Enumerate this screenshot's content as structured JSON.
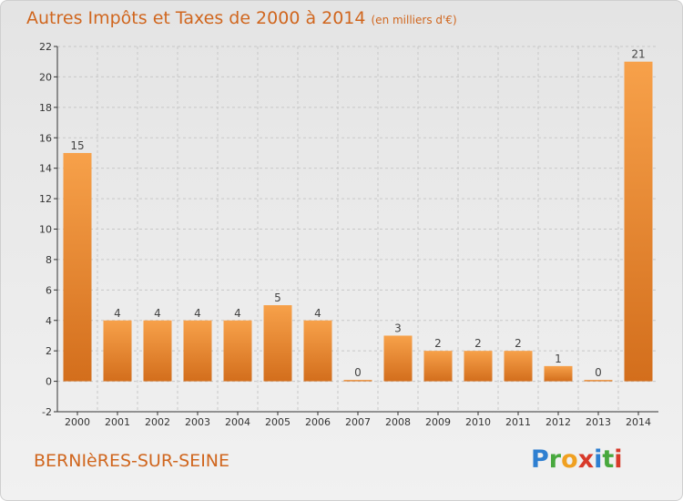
{
  "title": {
    "main": "Autres Impôts et Taxes de 2000 à 2014",
    "unit": "(en milliers d'€)"
  },
  "commune": "BERNIèRES-SUR-SEINE",
  "logo": {
    "text": "Proxiti",
    "letters": [
      "P",
      "r",
      "o",
      "x",
      "i",
      "t",
      "i"
    ],
    "colors": [
      "#2e7fd1",
      "#48a83e",
      "#f0a020",
      "#d83a2a",
      "#2e7fd1",
      "#48a83e",
      "#d83a2a"
    ]
  },
  "colors": {
    "bar_light": "#f7a14a",
    "bar_dark": "#d36e1c",
    "title": "#d0661e",
    "grid": "#c8c8c8",
    "axis": "#333333"
  },
  "chart_data": {
    "type": "bar",
    "title": "Autres Impôts et Taxes de 2000 à 2014",
    "subtitle": "(en milliers d'€)",
    "xlabel": "",
    "ylabel": "",
    "categories": [
      "2000",
      "2001",
      "2002",
      "2003",
      "2004",
      "2005",
      "2006",
      "2007",
      "2008",
      "2009",
      "2010",
      "2011",
      "2012",
      "2013",
      "2014"
    ],
    "values": [
      15,
      4,
      4,
      4,
      4,
      5,
      4,
      0,
      3,
      2,
      2,
      2,
      1,
      0,
      21
    ],
    "value_labels": [
      "15",
      "4",
      "4",
      "4",
      "4",
      "5",
      "4",
      "0",
      "3",
      "2",
      "2",
      "2",
      "1",
      "0",
      "21"
    ],
    "ylim": [
      -2,
      22
    ],
    "yticks": [
      -2,
      0,
      2,
      4,
      6,
      8,
      10,
      12,
      14,
      16,
      18,
      20,
      22
    ],
    "grid": "horizontal dashed",
    "legend": "none"
  }
}
